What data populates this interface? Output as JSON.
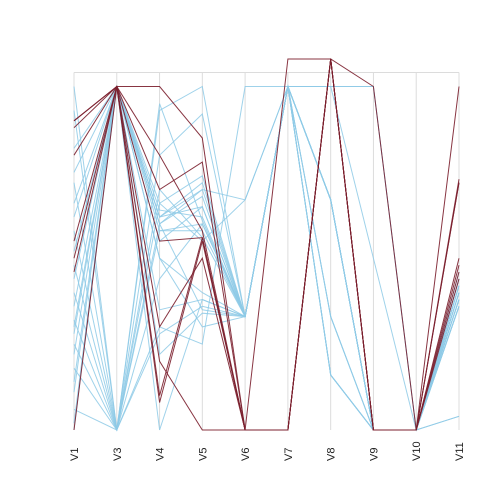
{
  "chart_data": {
    "type": "parallel-coordinates",
    "axes": [
      "V1",
      "V3",
      "V4",
      "V5",
      "V6",
      "V7",
      "V8",
      "V9",
      "V10",
      "V11"
    ],
    "ylim": [
      0,
      1.08
    ],
    "grid": false,
    "legend": "none",
    "colors": {
      "light": "#8ecae6",
      "dark": "#7b1f2e"
    },
    "series": [
      {
        "color": "light",
        "values": [
          1.0,
          0.0,
          0.93,
          1.0,
          0.33,
          1.0,
          1.0,
          1.0,
          0.0,
          0.04
        ]
      },
      {
        "color": "light",
        "values": [
          0.93,
          0.0,
          0.8,
          0.92,
          0.33,
          1.0,
          1.0,
          1.0,
          0.0,
          0.04
        ]
      },
      {
        "color": "light",
        "values": [
          0.82,
          1.0,
          0.55,
          0.65,
          0.33,
          1.0,
          0.67,
          0.0,
          0.0,
          0.38
        ]
      },
      {
        "color": "light",
        "values": [
          0.72,
          0.0,
          0.66,
          0.55,
          0.67,
          1.0,
          0.33,
          0.0,
          0.0,
          0.42
        ]
      },
      {
        "color": "light",
        "values": [
          0.66,
          1.0,
          0.62,
          0.72,
          0.33,
          1.0,
          0.67,
          0.0,
          0.0,
          0.46
        ]
      },
      {
        "color": "light",
        "values": [
          0.58,
          0.0,
          0.95,
          0.61,
          0.33,
          1.0,
          0.67,
          0.0,
          0.0,
          0.4
        ]
      },
      {
        "color": "light",
        "values": [
          0.52,
          1.0,
          0.62,
          0.65,
          0.33,
          1.0,
          0.33,
          0.0,
          0.0,
          0.36
        ]
      },
      {
        "color": "light",
        "values": [
          0.48,
          0.0,
          0.6,
          0.7,
          0.67,
          1.0,
          0.16,
          0.0,
          0.0,
          0.44
        ]
      },
      {
        "color": "light",
        "values": [
          0.44,
          1.0,
          0.5,
          0.4,
          0.33,
          1.0,
          0.67,
          0.0,
          0.0,
          0.38
        ]
      },
      {
        "color": "light",
        "values": [
          0.4,
          0.0,
          0.3,
          0.25,
          1.0,
          1.0,
          0.67,
          0.0,
          0.0,
          0.42
        ]
      },
      {
        "color": "light",
        "values": [
          0.36,
          1.0,
          0.35,
          0.38,
          0.33,
          1.0,
          1.0,
          0.5,
          0.0,
          0.36
        ]
      },
      {
        "color": "light",
        "values": [
          0.32,
          0.0,
          0.28,
          0.36,
          0.33,
          1.0,
          0.16,
          0.0,
          0.0,
          0.4
        ]
      },
      {
        "color": "light",
        "values": [
          0.28,
          1.0,
          0.22,
          0.34,
          0.33,
          1.0,
          0.67,
          0.0,
          0.0,
          0.36
        ]
      },
      {
        "color": "light",
        "values": [
          0.25,
          0.0,
          0.44,
          0.6,
          0.33,
          1.0,
          0.33,
          0.0,
          0.0,
          0.4
        ]
      },
      {
        "color": "light",
        "values": [
          0.22,
          1.0,
          0.5,
          0.3,
          0.33,
          1.0,
          0.67,
          0.0,
          0.0,
          0.44
        ]
      },
      {
        "color": "light",
        "values": [
          0.18,
          0.0,
          0.58,
          0.6,
          0.33,
          1.0,
          0.67,
          0.0,
          0.0,
          0.38
        ]
      },
      {
        "color": "light",
        "values": [
          0.14,
          1.0,
          0.66,
          0.74,
          0.33,
          1.0,
          0.67,
          0.0,
          0.0,
          0.42
        ]
      },
      {
        "color": "light",
        "values": [
          0.11,
          1.0,
          0.62,
          0.7,
          0.33,
          1.0,
          0.16,
          0.0,
          0.0,
          0.36
        ]
      },
      {
        "color": "light",
        "values": [
          0.06,
          0.0,
          0.7,
          0.56,
          0.33,
          1.0,
          0.67,
          0.0,
          0.0,
          0.4
        ]
      },
      {
        "color": "light",
        "values": [
          0.02,
          1.0,
          0.6,
          0.35,
          0.33,
          1.0,
          0.67,
          0.0,
          0.0,
          0.44
        ]
      },
      {
        "color": "light",
        "values": [
          0.0,
          1.0,
          0.0,
          0.38,
          0.33,
          1.0,
          0.67,
          0.0,
          0.0,
          0.38
        ]
      },
      {
        "color": "light",
        "values": [
          0.62,
          1.0,
          0.64,
          0.62,
          0.33,
          1.0,
          0.67,
          0.0,
          0.0,
          0.42
        ]
      },
      {
        "color": "light",
        "values": [
          0.75,
          1.0,
          0.58,
          0.58,
          0.33,
          1.0,
          0.16,
          0.0,
          0.0,
          0.38
        ]
      },
      {
        "color": "light",
        "values": [
          0.3,
          1.0,
          0.6,
          0.68,
          0.33,
          1.0,
          0.16,
          0.0,
          0.0,
          0.4
        ]
      },
      {
        "color": "dark",
        "values": [
          0.88,
          1.0,
          1.0,
          0.85,
          0.0,
          0.0,
          1.08,
          0.0,
          0.0,
          1.0
        ]
      },
      {
        "color": "dark",
        "values": [
          0.8,
          1.0,
          0.7,
          0.78,
          0.0,
          0.0,
          1.08,
          0.0,
          0.0,
          0.73
        ]
      },
      {
        "color": "dark",
        "values": [
          0.55,
          1.0,
          0.3,
          0.5,
          0.0,
          0.0,
          1.08,
          0.0,
          0.0,
          0.72
        ]
      },
      {
        "color": "dark",
        "values": [
          0.46,
          1.0,
          0.08,
          0.55,
          0.0,
          0.0,
          1.08,
          0.0,
          0.0,
          0.48
        ]
      },
      {
        "color": "dark",
        "values": [
          0.5,
          1.0,
          0.8,
          0.58,
          0.0,
          0.0,
          1.08,
          1.0,
          0.0,
          0.72
        ]
      },
      {
        "color": "dark",
        "values": [
          0.9,
          1.0,
          0.2,
          0.0,
          0.0,
          0.0,
          1.08,
          0.0,
          0.0,
          0.5
        ]
      },
      {
        "color": "dark",
        "values": [
          0.0,
          1.0,
          0.55,
          0.56,
          0.0,
          1.08,
          1.08,
          0.0,
          0.0,
          0.46
        ]
      },
      {
        "color": "dark",
        "values": [
          0.9,
          1.0,
          0.1,
          0.56,
          0.0,
          0.0,
          1.08,
          0.0,
          0.0,
          0.44
        ]
      }
    ]
  }
}
